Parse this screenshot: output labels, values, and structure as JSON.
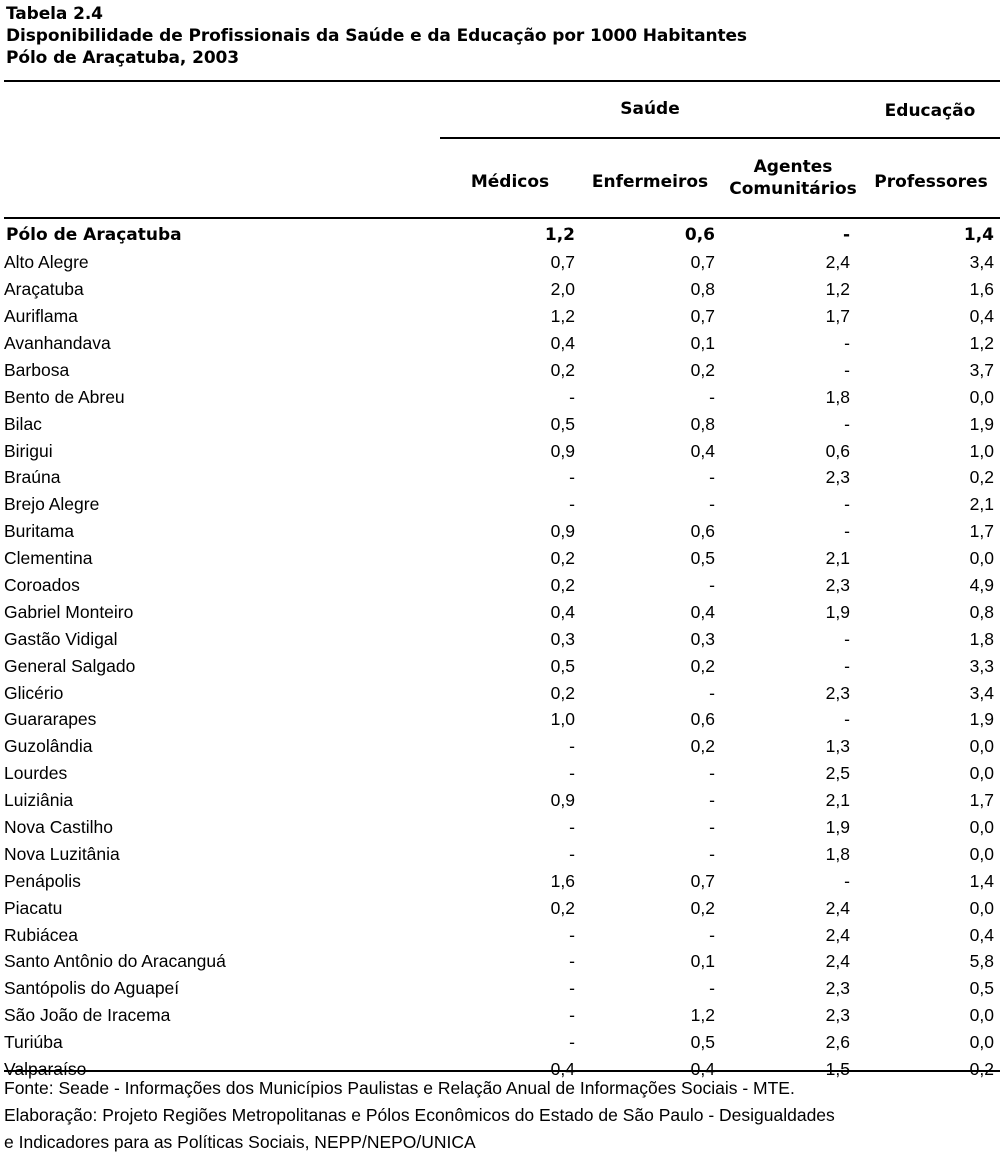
{
  "table": {
    "label": "Tabela 2.4",
    "title": "Disponibilidade de Profissionais da Saúde e da Educação por 1000 Habitantes",
    "subtitle": "Pólo de Araçatuba, 2003",
    "group_headers": {
      "saude": "Saúde",
      "educacao": "Educação"
    },
    "columns": {
      "medicos": "Médicos",
      "enfermeiros": "Enfermeiros",
      "agentes_line1": "Agentes",
      "agentes_line2": "Comunitários",
      "professores": "Professores"
    },
    "total_row": {
      "name": "Pólo de Araçatuba",
      "medicos": "1,2",
      "enfermeiros": "0,6",
      "agentes": "-",
      "professores": "1,4"
    },
    "rows": [
      {
        "name": "Alto Alegre",
        "medicos": "0,7",
        "enfermeiros": "0,7",
        "agentes": "2,4",
        "professores": "3,4"
      },
      {
        "name": "Araçatuba",
        "medicos": "2,0",
        "enfermeiros": "0,8",
        "agentes": "1,2",
        "professores": "1,6"
      },
      {
        "name": "Auriflama",
        "medicos": "1,2",
        "enfermeiros": "0,7",
        "agentes": "1,7",
        "professores": "0,4"
      },
      {
        "name": "Avanhandava",
        "medicos": "0,4",
        "enfermeiros": "0,1",
        "agentes": "-",
        "professores": "1,2"
      },
      {
        "name": "Barbosa",
        "medicos": "0,2",
        "enfermeiros": "0,2",
        "agentes": "-",
        "professores": "3,7"
      },
      {
        "name": "Bento de Abreu",
        "medicos": "-",
        "enfermeiros": "-",
        "agentes": "1,8",
        "professores": "0,0"
      },
      {
        "name": "Bilac",
        "medicos": "0,5",
        "enfermeiros": "0,8",
        "agentes": "-",
        "professores": "1,9"
      },
      {
        "name": "Birigui",
        "medicos": "0,9",
        "enfermeiros": "0,4",
        "agentes": "0,6",
        "professores": "1,0"
      },
      {
        "name": "Braúna",
        "medicos": "-",
        "enfermeiros": "-",
        "agentes": "2,3",
        "professores": "0,2"
      },
      {
        "name": "Brejo Alegre",
        "medicos": "-",
        "enfermeiros": "-",
        "agentes": "-",
        "professores": "2,1"
      },
      {
        "name": "Buritama",
        "medicos": "0,9",
        "enfermeiros": "0,6",
        "agentes": "-",
        "professores": "1,7"
      },
      {
        "name": "Clementina",
        "medicos": "0,2",
        "enfermeiros": "0,5",
        "agentes": "2,1",
        "professores": "0,0"
      },
      {
        "name": "Coroados",
        "medicos": "0,2",
        "enfermeiros": "-",
        "agentes": "2,3",
        "professores": "4,9"
      },
      {
        "name": "Gabriel Monteiro",
        "medicos": "0,4",
        "enfermeiros": "0,4",
        "agentes": "1,9",
        "professores": "0,8"
      },
      {
        "name": "Gastão Vidigal",
        "medicos": "0,3",
        "enfermeiros": "0,3",
        "agentes": "-",
        "professores": "1,8"
      },
      {
        "name": "General Salgado",
        "medicos": "0,5",
        "enfermeiros": "0,2",
        "agentes": "-",
        "professores": "3,3"
      },
      {
        "name": "Glicério",
        "medicos": "0,2",
        "enfermeiros": "-",
        "agentes": "2,3",
        "professores": "3,4"
      },
      {
        "name": "Guararapes",
        "medicos": "1,0",
        "enfermeiros": "0,6",
        "agentes": "-",
        "professores": "1,9"
      },
      {
        "name": "Guzolândia",
        "medicos": "-",
        "enfermeiros": "0,2",
        "agentes": "1,3",
        "professores": "0,0"
      },
      {
        "name": "Lourdes",
        "medicos": "-",
        "enfermeiros": "-",
        "agentes": "2,5",
        "professores": "0,0"
      },
      {
        "name": "Luiziânia",
        "medicos": "0,9",
        "enfermeiros": "-",
        "agentes": "2,1",
        "professores": "1,7"
      },
      {
        "name": "Nova Castilho",
        "medicos": "-",
        "enfermeiros": "-",
        "agentes": "1,9",
        "professores": "0,0"
      },
      {
        "name": "Nova Luzitânia",
        "medicos": "-",
        "enfermeiros": "-",
        "agentes": "1,8",
        "professores": "0,0"
      },
      {
        "name": "Penápolis",
        "medicos": "1,6",
        "enfermeiros": "0,7",
        "agentes": "-",
        "professores": "1,4"
      },
      {
        "name": "Piacatu",
        "medicos": "0,2",
        "enfermeiros": "0,2",
        "agentes": "2,4",
        "professores": "0,0"
      },
      {
        "name": "Rubiácea",
        "medicos": "-",
        "enfermeiros": "-",
        "agentes": "2,4",
        "professores": "0,4"
      },
      {
        "name": "Santo Antônio do Aracanguá",
        "medicos": "-",
        "enfermeiros": "0,1",
        "agentes": "2,4",
        "professores": "5,8"
      },
      {
        "name": "Santópolis do Aguapeí",
        "medicos": "-",
        "enfermeiros": "-",
        "agentes": "2,3",
        "professores": "0,5"
      },
      {
        "name": "São João de Iracema",
        "medicos": "-",
        "enfermeiros": "1,2",
        "agentes": "2,3",
        "professores": "0,0"
      },
      {
        "name": "Turiúba",
        "medicos": "-",
        "enfermeiros": "0,5",
        "agentes": "2,6",
        "professores": "0,0"
      },
      {
        "name": "Valparaíso",
        "medicos": "0,4",
        "enfermeiros": "0,4",
        "agentes": "1,5",
        "professores": "0,2"
      }
    ]
  },
  "footer": {
    "line1": "Fonte: Seade - Informações dos Municípios Paulistas e Relação Anual de Informações Sociais - MTE.",
    "line2": "Elaboração: Projeto Regiões Metropolitanas e Pólos Econômicos do Estado de São Paulo - Desigualdades",
    "line3": "e Indicadores para as Políticas Sociais, NEPP/NEPO/UNICA"
  }
}
